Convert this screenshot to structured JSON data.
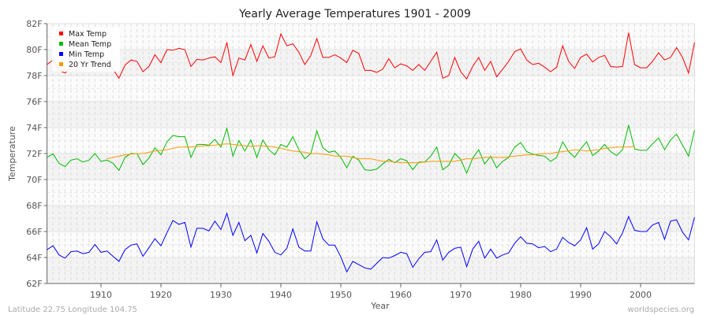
{
  "chart_data": {
    "type": "line",
    "title": "Yearly Average Temperatures 1901 - 2009",
    "xlabel": "Year",
    "ylabel": "Temperature",
    "xlim": [
      1901,
      2009
    ],
    "ylim": [
      62,
      82
    ],
    "x_ticks": [
      1910,
      1920,
      1930,
      1940,
      1950,
      1960,
      1970,
      1980,
      1990,
      2000
    ],
    "y_ticks": [
      "62F",
      "64F",
      "66F",
      "68F",
      "70F",
      "72F",
      "74F",
      "76F",
      "78F",
      "80F",
      "82F"
    ],
    "grid": true,
    "legend_position": "top-left",
    "x_start": 1901,
    "series": [
      {
        "name": "Max Temp",
        "color": "#ff0000",
        "start": 1901,
        "values": [
          78.85,
          79.2,
          78.4,
          78.2,
          78.6,
          78.9,
          79.0,
          78.7,
          79.2,
          79.4,
          78.8,
          78.5,
          77.8,
          78.8,
          79.2,
          79.1,
          78.3,
          78.7,
          79.6,
          79.0,
          80.0,
          79.95,
          80.1,
          80.0,
          78.7,
          79.25,
          79.2,
          79.35,
          79.45,
          79.0,
          80.55,
          78.0,
          79.35,
          79.2,
          80.4,
          79.1,
          80.3,
          79.35,
          79.45,
          81.2,
          80.3,
          80.45,
          79.8,
          78.85,
          79.55,
          80.85,
          79.4,
          79.4,
          79.6,
          79.35,
          79.0,
          79.95,
          79.7,
          78.4,
          78.4,
          78.25,
          78.5,
          79.3,
          78.6,
          78.9,
          78.75,
          78.4,
          78.85,
          78.4,
          79.1,
          79.8,
          77.8,
          78.0,
          79.4,
          78.3,
          77.75,
          78.7,
          79.4,
          78.4,
          79.1,
          77.9,
          78.5,
          79.1,
          79.85,
          80.05,
          79.2,
          78.85,
          78.95,
          78.65,
          78.3,
          78.65,
          80.3,
          79.1,
          78.55,
          79.4,
          79.65,
          79.05,
          79.4,
          79.55,
          78.7,
          78.65,
          78.7,
          81.3,
          78.85,
          78.6,
          78.6,
          79.1,
          79.75,
          79.2,
          79.4,
          80.15,
          79.4,
          78.2,
          80.55
        ]
      },
      {
        "name": "Mean Temp",
        "color": "#00bb00",
        "start": 1901,
        "values": [
          71.7,
          71.98,
          71.25,
          71.0,
          71.5,
          71.6,
          71.35,
          71.5,
          72.0,
          71.4,
          71.5,
          71.25,
          70.7,
          71.7,
          72.0,
          72.0,
          71.15,
          71.65,
          72.45,
          71.9,
          72.9,
          73.4,
          73.3,
          73.3,
          71.7,
          72.7,
          72.7,
          72.65,
          73.1,
          72.5,
          73.95,
          71.8,
          73.0,
          72.2,
          73.05,
          71.7,
          73.05,
          72.3,
          71.9,
          72.7,
          72.5,
          73.3,
          72.3,
          71.6,
          72.0,
          73.75,
          72.45,
          72.1,
          72.2,
          71.7,
          70.9,
          71.8,
          71.5,
          70.75,
          70.7,
          70.8,
          71.2,
          71.55,
          71.3,
          71.6,
          71.45,
          70.75,
          71.35,
          71.35,
          71.8,
          72.5,
          70.75,
          71.1,
          72.0,
          71.55,
          70.5,
          71.65,
          72.3,
          71.2,
          71.8,
          70.9,
          71.4,
          71.7,
          72.5,
          72.85,
          72.15,
          71.95,
          71.85,
          71.8,
          71.4,
          71.7,
          72.9,
          72.15,
          71.7,
          72.35,
          72.9,
          71.85,
          72.2,
          72.7,
          72.15,
          71.85,
          72.3,
          74.2,
          72.35,
          72.25,
          72.25,
          72.75,
          73.2,
          72.3,
          73.05,
          73.5,
          72.65,
          71.8,
          73.8
        ]
      },
      {
        "name": "Min Temp",
        "color": "#0000ff",
        "start": 1901,
        "values": [
          64.6,
          64.9,
          64.2,
          63.95,
          64.45,
          64.5,
          64.3,
          64.4,
          65.0,
          64.4,
          64.5,
          64.1,
          63.7,
          64.6,
          64.95,
          65.05,
          64.1,
          64.75,
          65.45,
          64.9,
          65.9,
          66.85,
          66.55,
          66.7,
          64.8,
          66.25,
          66.25,
          66.05,
          66.8,
          66.15,
          67.4,
          65.7,
          66.7,
          65.3,
          65.7,
          64.35,
          65.85,
          65.25,
          64.4,
          64.2,
          64.7,
          66.2,
          64.8,
          64.5,
          64.5,
          66.75,
          65.45,
          64.95,
          64.95,
          64.05,
          62.9,
          63.7,
          63.45,
          63.2,
          63.1,
          63.55,
          64.0,
          63.95,
          64.15,
          64.4,
          64.3,
          63.25,
          63.9,
          64.4,
          64.45,
          65.35,
          63.8,
          64.4,
          64.7,
          64.8,
          63.3,
          64.65,
          65.25,
          63.95,
          64.65,
          63.95,
          64.2,
          64.35,
          65.1,
          65.6,
          65.1,
          65.05,
          64.75,
          64.85,
          64.45,
          64.65,
          65.55,
          65.15,
          64.9,
          65.35,
          66.3,
          64.65,
          65.05,
          66.0,
          65.6,
          65.05,
          65.9,
          67.15,
          66.1,
          66.0,
          66.0,
          66.5,
          66.7,
          65.4,
          66.8,
          66.9,
          65.95,
          65.35,
          67.1
        ]
      },
      {
        "name": "20 Yr Trend",
        "color": "#ff9900",
        "start": 1911,
        "values": [
          71.6,
          71.7,
          71.8,
          71.9,
          71.95,
          72.0,
          72.0,
          72.1,
          72.2,
          72.25,
          72.3,
          72.4,
          72.5,
          72.5,
          72.5,
          72.55,
          72.6,
          72.6,
          72.65,
          72.7,
          72.75,
          72.7,
          72.65,
          72.6,
          72.55,
          72.6,
          72.6,
          72.55,
          72.5,
          72.4,
          72.3,
          72.2,
          72.15,
          72.1,
          72.0,
          72.0,
          71.95,
          71.9,
          71.8,
          71.8,
          71.8,
          71.7,
          71.6,
          71.6,
          71.6,
          71.5,
          71.4,
          71.4,
          71.35,
          71.3,
          71.3,
          71.3,
          71.3,
          71.35,
          71.4,
          71.4,
          71.4,
          71.4,
          71.4,
          71.5,
          71.6,
          71.6,
          71.65,
          71.7,
          71.7,
          71.7,
          71.7,
          71.75,
          71.8,
          71.85,
          71.9,
          71.9,
          71.95,
          72.0,
          72.0,
          72.1,
          72.15,
          72.2,
          72.3,
          72.25,
          72.2,
          72.25,
          72.3,
          72.4,
          72.45,
          72.5,
          72.5,
          72.5,
          72.55
        ]
      }
    ]
  },
  "footer": {
    "location": "Latitude 22.75 Longitude 104.75",
    "source": "worldspecies.org"
  }
}
